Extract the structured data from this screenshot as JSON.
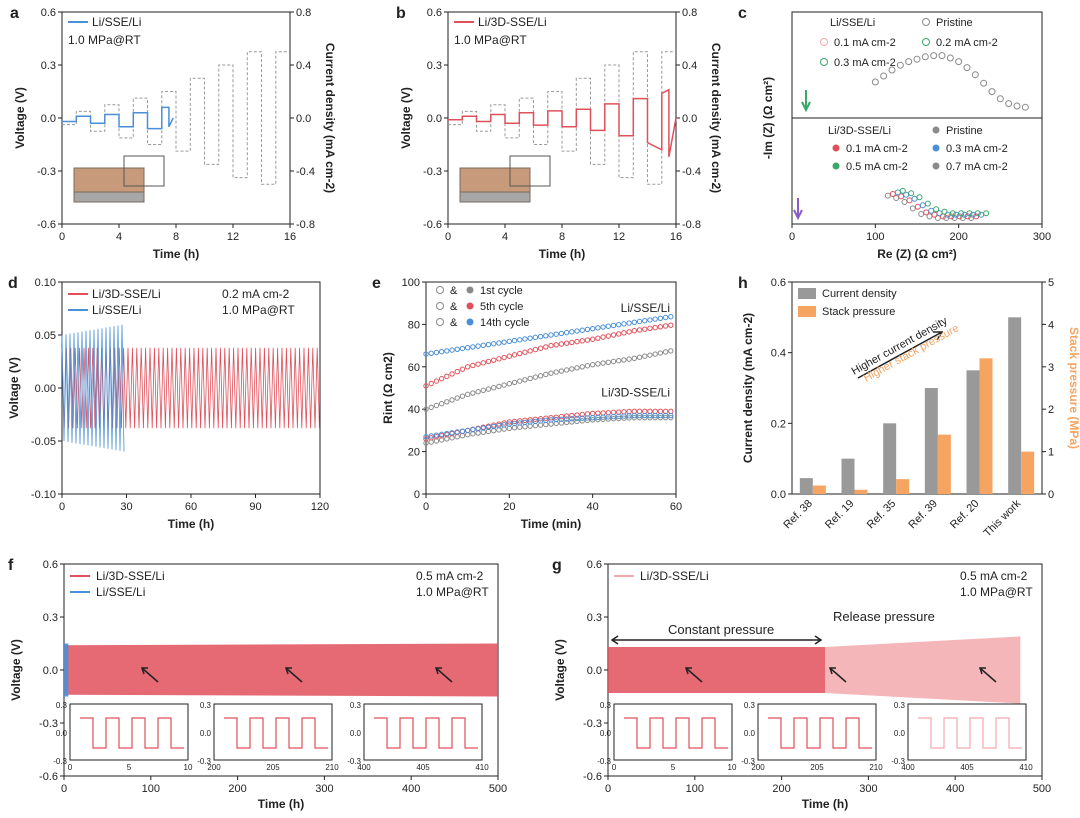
{
  "colors": {
    "blue": "#4a8fd8",
    "red": "#e0505a",
    "pink": "#f2a9ad",
    "grey": "#8a8a8a",
    "orange": "#f5a462",
    "green": "#3aa866",
    "purple": "#8a5cc8",
    "axis": "#222222"
  },
  "chart_data": [
    {
      "panel": "a",
      "type": "line",
      "title": "",
      "xlabel": "Time (h)",
      "ylabel": "Voltage (V)",
      "y2label": "Current density (mA cm-2)",
      "xlim": [
        0,
        16
      ],
      "ylim": [
        -0.6,
        0.6
      ],
      "y2lim": [
        -0.8,
        0.8
      ],
      "xticks": [
        "0",
        "4",
        "8",
        "12",
        "16"
      ],
      "yticks": [
        "-0.6",
        "-0.3",
        "0.0",
        "0.3",
        "0.6"
      ],
      "y2ticks": [
        "-0.8",
        "-0.4",
        "0.0",
        "0.4",
        "0.8"
      ],
      "legend": [
        "Li/SSE/Li"
      ],
      "annotations": [
        "1.0 MPa@RT"
      ],
      "series": [
        {
          "name": "Li/SSE/Li",
          "x": [
            0,
            1,
            1,
            2,
            2,
            3,
            3,
            4,
            4,
            5,
            5,
            6,
            6,
            7,
            7,
            7.5,
            7.5,
            7.8
          ],
          "y": [
            -0.02,
            -0.02,
            0.01,
            0.01,
            -0.03,
            -0.03,
            0.02,
            0.02,
            -0.05,
            -0.05,
            0.03,
            0.03,
            -0.06,
            -0.06,
            0.06,
            0.06,
            -0.05,
            0.0
          ]
        },
        {
          "name": "current",
          "x": [
            0,
            1,
            1,
            2,
            2,
            3,
            3,
            4,
            4,
            5,
            5,
            6,
            6,
            7,
            7,
            8,
            8,
            9,
            9,
            10,
            10,
            11,
            11,
            12,
            12,
            13,
            13,
            14,
            14,
            15,
            15,
            16
          ],
          "y": [
            -0.05,
            -0.05,
            0.05,
            0.05,
            -0.1,
            -0.1,
            0.1,
            0.1,
            -0.15,
            -0.15,
            0.15,
            0.15,
            -0.2,
            -0.2,
            0.2,
            0.2,
            -0.25,
            -0.25,
            0.3,
            0.3,
            -0.35,
            -0.35,
            0.4,
            0.4,
            -0.45,
            -0.45,
            0.5,
            0.5,
            -0.5,
            -0.5,
            0.5,
            0.5
          ]
        }
      ]
    },
    {
      "panel": "b",
      "type": "line",
      "title": "",
      "xlabel": "Time (h)",
      "ylabel": "Voltage (V)",
      "y2label": "Current density (mA cm-2)",
      "xlim": [
        0,
        16
      ],
      "ylim": [
        -0.6,
        0.6
      ],
      "y2lim": [
        -0.8,
        0.8
      ],
      "xticks": [
        "0",
        "4",
        "8",
        "12",
        "16"
      ],
      "yticks": [
        "-0.6",
        "-0.3",
        "0.0",
        "0.3",
        "0.6"
      ],
      "y2ticks": [
        "-0.8",
        "-0.4",
        "0.0",
        "0.4",
        "0.8"
      ],
      "legend": [
        "Li/3D-SSE/Li"
      ],
      "annotations": [
        "1.0 MPa@RT"
      ],
      "series": [
        {
          "name": "Li/3D-SSE/Li",
          "x": [
            0,
            1,
            1,
            2,
            2,
            3,
            3,
            4,
            4,
            5,
            5,
            6,
            6,
            7,
            7,
            8,
            8,
            9,
            9,
            10,
            10,
            11,
            11,
            12,
            12,
            13,
            13,
            14,
            14,
            15,
            15,
            15.5,
            15.5,
            16
          ],
          "y": [
            -0.01,
            -0.01,
            0.01,
            0.01,
            -0.02,
            -0.02,
            0.02,
            0.02,
            -0.03,
            -0.03,
            0.03,
            0.03,
            -0.04,
            -0.04,
            0.04,
            0.04,
            -0.05,
            -0.05,
            0.05,
            0.05,
            -0.07,
            -0.07,
            0.08,
            0.08,
            -0.1,
            -0.1,
            0.11,
            0.11,
            -0.14,
            -0.18,
            0.14,
            0.16,
            -0.22,
            0.0
          ]
        },
        {
          "name": "current",
          "x": [
            0,
            1,
            1,
            2,
            2,
            3,
            3,
            4,
            4,
            5,
            5,
            6,
            6,
            7,
            7,
            8,
            8,
            9,
            9,
            10,
            10,
            11,
            11,
            12,
            12,
            13,
            13,
            14,
            14,
            15,
            15,
            16
          ],
          "y": [
            -0.05,
            -0.05,
            0.05,
            0.05,
            -0.1,
            -0.1,
            0.1,
            0.1,
            -0.15,
            -0.15,
            0.15,
            0.15,
            -0.2,
            -0.2,
            0.2,
            0.2,
            -0.25,
            -0.25,
            0.3,
            0.3,
            -0.35,
            -0.35,
            0.4,
            0.4,
            -0.45,
            -0.45,
            0.5,
            0.5,
            -0.5,
            -0.5,
            0.5,
            0.5
          ]
        }
      ]
    },
    {
      "panel": "c",
      "type": "scatter",
      "title": "",
      "xlabel": "Re (Z) (Ω cm²)",
      "ylabel": "-Im (Z) (Ω cm²)",
      "xlim": [
        0,
        300
      ],
      "xticks": [
        "0",
        "100",
        "200",
        "300"
      ],
      "legend_top": {
        "title": "Li/SSE/Li",
        "entries": [
          "Pristine",
          "0.1 mA cm-2",
          "0.2 mA cm-2",
          "0.3 mA cm-2"
        ]
      },
      "legend_bottom": {
        "title": "Li/3D-SSE/Li",
        "entries": [
          "Pristine",
          "0.1 mA cm-2",
          "0.3 mA cm-2",
          "0.5 mA cm-2",
          "0.7 mA cm-2"
        ]
      },
      "series": [
        {
          "name": "Li/SSE/Li",
          "re": [
            100,
            110,
            120,
            130,
            140,
            150,
            160,
            170,
            180,
            190,
            200,
            210,
            220,
            230,
            240,
            250,
            260,
            270,
            280
          ],
          "im": [
            25,
            30,
            35,
            39,
            42,
            44,
            46,
            47,
            47,
            45,
            42,
            37,
            31,
            24,
            17,
            11,
            7,
            5,
            4
          ]
        },
        {
          "name": "Li/3D-SSE/Li",
          "re": [
            115,
            125,
            135,
            145,
            155,
            165,
            175,
            185,
            195,
            205,
            215
          ],
          "im": [
            28,
            25,
            20,
            12,
            5,
            2,
            0,
            0,
            0,
            0,
            0
          ]
        }
      ]
    },
    {
      "panel": "d",
      "type": "line",
      "title": "",
      "xlabel": "Time (h)",
      "ylabel": "Voltage (V)",
      "xlim": [
        0,
        120
      ],
      "ylim": [
        -0.1,
        0.1
      ],
      "xticks": [
        "0",
        "30",
        "60",
        "90",
        "120"
      ],
      "yticks": [
        "-0.10",
        "-0.05",
        "0.00",
        "0.05",
        "0.10"
      ],
      "legend": [
        "Li/3D-SSE/Li",
        "Li/SSE/Li"
      ],
      "annotations": [
        "0.2 mA cm-2",
        "1.0 MPa@RT"
      ],
      "series": [
        {
          "name": "Li/3D-SSE/Li",
          "x": [
            0,
            120
          ],
          "amplitude": [
            0.038,
            0.038
          ]
        },
        {
          "name": "Li/SSE/Li",
          "x": [
            0,
            29
          ],
          "amplitude": [
            0.05,
            0.06
          ]
        }
      ]
    },
    {
      "panel": "e",
      "type": "scatter",
      "title": "",
      "xlabel": "Time (min)",
      "ylabel": "Rint (Ω cm2)",
      "xlim": [
        0,
        60
      ],
      "ylim": [
        0,
        100
      ],
      "xticks": [
        "0",
        "20",
        "40",
        "60"
      ],
      "yticks": [
        "0",
        "20",
        "40",
        "60",
        "80",
        "100"
      ],
      "legend": [
        "1st cycle",
        "5th cycle",
        "14th cycle"
      ],
      "legend_sep": "&",
      "annotations": [
        "Li/SSE/Li",
        "Li/3D-SSE/Li"
      ],
      "series": [
        {
          "name": "Li/SSE/Li 1st",
          "x": [
            0,
            10,
            20,
            30,
            40,
            50,
            60
          ],
          "y": [
            40,
            47,
            52,
            57,
            61,
            64,
            68
          ]
        },
        {
          "name": "Li/SSE/Li 5th",
          "x": [
            0,
            10,
            20,
            30,
            40,
            50,
            60
          ],
          "y": [
            51,
            60,
            65,
            70,
            73,
            77,
            80
          ]
        },
        {
          "name": "Li/SSE/Li 14th",
          "x": [
            0,
            10,
            20,
            30,
            40,
            50,
            60
          ],
          "y": [
            66,
            69,
            72,
            75,
            78,
            81,
            84
          ]
        },
        {
          "name": "Li/3D-SSE/Li 1st",
          "x": [
            0,
            10,
            20,
            30,
            40,
            50,
            60
          ],
          "y": [
            24,
            28,
            31,
            33,
            35,
            36,
            36
          ]
        },
        {
          "name": "Li/3D-SSE/Li 5th",
          "x": [
            0,
            10,
            20,
            30,
            40,
            50,
            60
          ],
          "y": [
            26,
            30,
            34,
            36,
            38,
            39,
            39
          ]
        },
        {
          "name": "Li/3D-SSE/Li 14th",
          "x": [
            0,
            10,
            20,
            30,
            40,
            50,
            60
          ],
          "y": [
            27,
            30,
            33,
            35,
            36,
            37,
            37
          ]
        }
      ]
    },
    {
      "panel": "h",
      "type": "bar",
      "title": "",
      "xlabel": "",
      "ylabel": "Current density (mA cm-2)",
      "y2label": "Stack pressure (MPa)",
      "ylim": [
        0,
        0.6
      ],
      "y2lim": [
        0,
        5
      ],
      "yticks": [
        "0.0",
        "0.2",
        "0.4",
        "0.6"
      ],
      "y2ticks": [
        "0",
        "1",
        "2",
        "3",
        "4",
        "5"
      ],
      "categories": [
        "Ref. 38",
        "Ref. 19",
        "Ref. 35",
        "Ref. 39",
        "Ref. 20",
        "This work"
      ],
      "series": [
        {
          "name": "Current density",
          "values": [
            0.045,
            0.1,
            0.2,
            0.3,
            0.35,
            0.5
          ]
        },
        {
          "name": "Stack pressure",
          "values": [
            0.2,
            0.1,
            0.35,
            1.4,
            3.2,
            1.0
          ]
        }
      ],
      "annotations": [
        "Higher current density",
        "Higher stack pressure"
      ]
    },
    {
      "panel": "f",
      "type": "line",
      "title": "",
      "xlabel": "Time (h)",
      "ylabel": "Voltage (V)",
      "xlim": [
        0,
        500
      ],
      "ylim": [
        -0.6,
        0.6
      ],
      "xticks": [
        "0",
        "100",
        "200",
        "300",
        "400",
        "500"
      ],
      "yticks": [
        "-0.6",
        "-0.3",
        "0.0",
        "0.3",
        "0.6"
      ],
      "legend": [
        "Li/3D-SSE/Li",
        "Li/SSE/Li"
      ],
      "annotations": [
        "0.5 mA cm-2",
        "1.0 MPa@RT"
      ],
      "series": [
        {
          "name": "Li/3D-SSE/Li",
          "x": [
            0,
            500
          ],
          "amplitude": [
            0.14,
            0.15
          ]
        },
        {
          "name": "Li/SSE/Li",
          "x": [
            0,
            5
          ],
          "amplitude": [
            0.15,
            0.15
          ]
        }
      ],
      "insets": [
        {
          "xticks": [
            "0",
            "5",
            "10"
          ],
          "yticks": [
            "0.3",
            "0.0",
            "-0.3"
          ]
        },
        {
          "xticks": [
            "200",
            "205",
            "210"
          ],
          "yticks": [
            "0.3",
            "0.0",
            "-0.3"
          ]
        },
        {
          "xticks": [
            "400",
            "405",
            "410"
          ],
          "yticks": [
            "0.3",
            "0.0",
            "-0.3"
          ]
        }
      ]
    },
    {
      "panel": "g",
      "type": "line",
      "title": "",
      "xlabel": "Time (h)",
      "ylabel": "Voltage (V)",
      "xlim": [
        0,
        500
      ],
      "ylim": [
        -0.6,
        0.6
      ],
      "xticks": [
        "0",
        "100",
        "200",
        "300",
        "400",
        "500"
      ],
      "yticks": [
        "-0.6",
        "-0.3",
        "0.0",
        "0.3",
        "0.6"
      ],
      "legend": [
        "Li/3D-SSE/Li"
      ],
      "annotations": [
        "0.5 mA cm-2",
        "1.0 MPa@RT",
        "Constant pressure",
        "Release pressure"
      ],
      "series": [
        {
          "name": "Constant pressure",
          "x": [
            0,
            250
          ],
          "amplitude": [
            0.13,
            0.13
          ]
        },
        {
          "name": "Release pressure",
          "x": [
            250,
            475
          ],
          "amplitude": [
            0.13,
            0.19
          ]
        }
      ],
      "insets": [
        {
          "xticks": [
            "0",
            "5",
            "10"
          ],
          "yticks": [
            "0.3",
            "0.0",
            "-0.3"
          ]
        },
        {
          "xticks": [
            "200",
            "205",
            "210"
          ],
          "yticks": [
            "0.3",
            "0.0",
            "-0.3"
          ]
        },
        {
          "xticks": [
            "400",
            "405",
            "410"
          ],
          "yticks": [
            "0.3",
            "0.0",
            "-0.3"
          ]
        }
      ]
    }
  ],
  "panel_labels": [
    "a",
    "b",
    "c",
    "d",
    "e",
    "f",
    "g",
    "h"
  ]
}
